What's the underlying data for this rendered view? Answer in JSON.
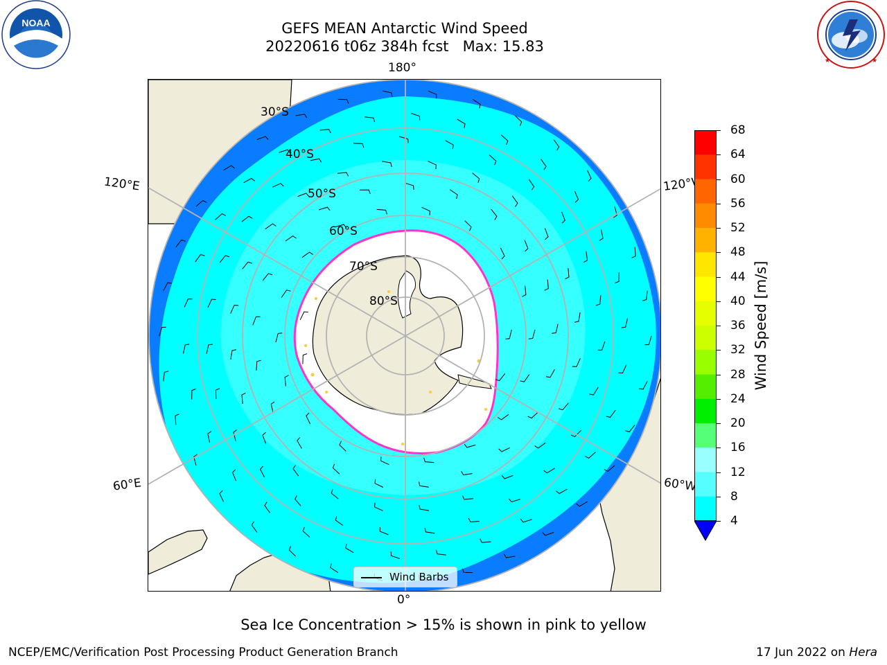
{
  "header": {
    "title_line1": "GEFS MEAN Antarctic Wind Speed",
    "title_line2": "20220616 t06z 384h fcst   Max: 15.83"
  },
  "logos": {
    "noaa": {
      "center_text": "NOAA",
      "ring_text": "NATIONAL OCEANIC AND ATMOSPHERIC ADMINISTRATION · U.S. DEPARTMENT OF COMMERCE"
    },
    "nws": {
      "ring_text": "NATIONAL WEATHER SERVICE"
    }
  },
  "map": {
    "projection": "south-polar-stereographic",
    "longitude_labels": {
      "top": "180°",
      "bottom": "0°",
      "upper_left": "120°E",
      "upper_right": "120°W",
      "lower_left": "60°E",
      "lower_right": "60°W"
    },
    "latitude_labels": [
      "30°S",
      "40°S",
      "50°S",
      "60°S",
      "70°S",
      "80°S"
    ],
    "colors": {
      "land": "#efedd9",
      "ocean_4_8": "#0a7cff",
      "ocean_8_12": "#00ffff",
      "ocean_12_16": "#4cffff",
      "sea_ice": "#ffffff",
      "ice_edge": "#ff33cc"
    }
  },
  "legend": {
    "label": "Wind Barbs"
  },
  "colorbar": {
    "title": "Wind Speed [m/s]",
    "ticks": [
      "68",
      "64",
      "60",
      "56",
      "52",
      "48",
      "44",
      "40",
      "36",
      "32",
      "28",
      "24",
      "20",
      "16",
      "12",
      "8",
      "4"
    ],
    "colors": [
      "#ff0000",
      "#ff3300",
      "#ff6600",
      "#ff8c00",
      "#ffb300",
      "#ffe600",
      "#ffff00",
      "#e6ff00",
      "#ccff00",
      "#99ff00",
      "#55ee00",
      "#00ee00",
      "#55ff77",
      "#99ffff",
      "#55ffff",
      "#00ffff",
      "#0080ff"
    ],
    "extend_color": "#0000ff"
  },
  "footer": {
    "note": "Sea Ice Concentration > 15% is shown in pink to yellow",
    "left": "NCEP/EMC/Verification Post Processing Product Generation Branch",
    "right_prefix": "17 Jun 2022 on ",
    "right_machine": "Hera"
  }
}
